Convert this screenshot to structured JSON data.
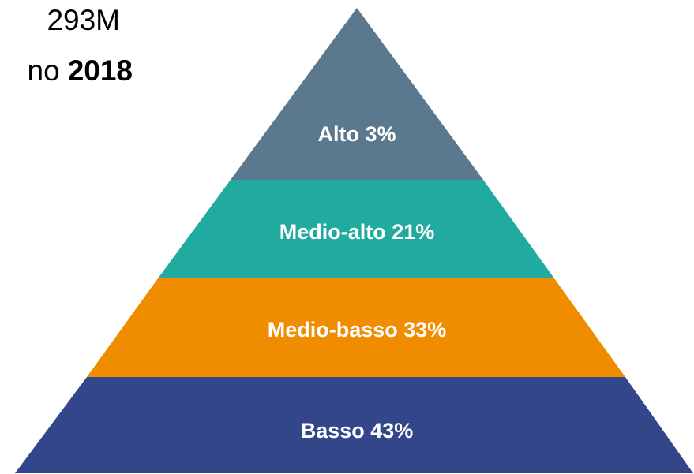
{
  "header": {
    "line1": "293M",
    "line2_prefix": "no",
    "line2_bold": "2018"
  },
  "layers": [
    {
      "label": "Alto 3%"
    },
    {
      "label": "Medio-alto 21%"
    },
    {
      "label": "Medio-basso 33%"
    },
    {
      "label": "Basso 43%"
    }
  ]
}
